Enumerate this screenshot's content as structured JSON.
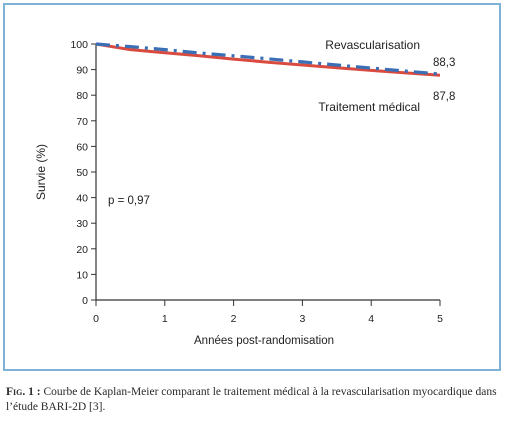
{
  "chart_data": {
    "type": "line",
    "xlabel": "Années post-randomisation",
    "ylabel": "Survie (%)",
    "xlim": [
      0,
      5
    ],
    "ylim": [
      0,
      100
    ],
    "x_ticks": [
      "0",
      "1",
      "2",
      "3",
      "4",
      "5"
    ],
    "y_ticks": [
      "0",
      "10",
      "20",
      "30",
      "40",
      "50",
      "60",
      "70",
      "80",
      "90",
      "100"
    ],
    "grid": false,
    "annotation": "p = 0,97",
    "series": [
      {
        "name": "Revascularisation",
        "color": "#3a6fb5",
        "style": "dash-dot",
        "end_label": "88,3",
        "x": [
          0,
          0.5,
          1,
          1.5,
          2,
          2.5,
          3,
          3.5,
          4,
          4.5,
          5
        ],
        "y": [
          100,
          99.0,
          97.8,
          96.5,
          95.4,
          94.2,
          93.0,
          91.8,
          90.6,
          89.4,
          88.3
        ]
      },
      {
        "name": "Traitement médical",
        "color": "#d94a3f",
        "style": "solid",
        "end_label": "87,8",
        "x": [
          0,
          0.5,
          1,
          1.5,
          2,
          2.5,
          3,
          3.5,
          4,
          4.5,
          5
        ],
        "y": [
          100,
          97.8,
          96.6,
          95.4,
          94.1,
          92.9,
          91.8,
          90.7,
          89.7,
          88.7,
          87.8
        ]
      }
    ]
  },
  "caption": {
    "label": "Fig. 1 :",
    "text": "Courbe de Kaplan-Meier comparant le traitement médical à la revascularisation myocardique dans l’étude BARI-2D [3]."
  }
}
